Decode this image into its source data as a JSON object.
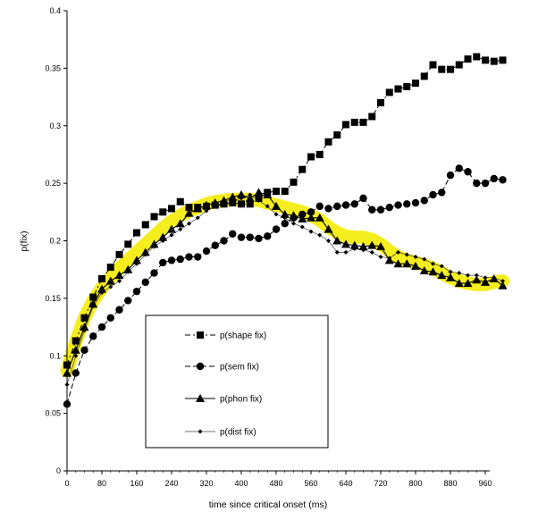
{
  "chart_data": {
    "type": "line",
    "title": "",
    "xlabel": "time since critical onset (ms)",
    "ylabel": "p(fix)",
    "xlim": [
      0,
      1000
    ],
    "ylim": [
      0,
      0.4
    ],
    "xticks": [
      0,
      80,
      160,
      240,
      320,
      400,
      480,
      560,
      640,
      720,
      800,
      880,
      960
    ],
    "xtick_labels": [
      "0",
      "80",
      "160",
      "240",
      "320",
      "400",
      "480",
      "560",
      "640",
      "720",
      "800",
      "880",
      "960"
    ],
    "yticks": [
      0,
      0.05,
      0.1,
      0.15,
      0.2,
      0.25,
      0.3,
      0.35,
      0.4
    ],
    "ytick_labels": [
      "0",
      "0.05",
      "0.1",
      "0.15",
      "0.2",
      "0.25",
      "0.3",
      "0.35",
      "0.4"
    ],
    "grid": false,
    "legend_position": "bottom-left",
    "highlight": {
      "color": "#f5ee1e",
      "x": [
        0,
        20,
        40,
        60,
        80,
        100,
        120,
        140,
        160,
        180,
        200,
        220,
        240,
        260,
        280,
        300,
        320,
        340,
        360,
        380,
        400,
        420,
        440,
        460,
        480,
        500,
        520,
        540,
        560,
        580,
        600,
        620,
        640,
        660,
        680,
        700,
        720,
        740,
        760,
        780,
        800,
        820,
        840,
        860,
        880,
        900,
        920,
        940,
        960,
        980,
        1000
      ],
      "y": [
        0.087,
        0.112,
        0.133,
        0.148,
        0.159,
        0.168,
        0.176,
        0.183,
        0.19,
        0.197,
        0.204,
        0.211,
        0.217,
        0.222,
        0.226,
        0.229,
        0.232,
        0.234,
        0.235,
        0.236,
        0.236,
        0.236,
        0.235,
        0.233,
        0.231,
        0.229,
        0.227,
        0.225,
        0.222,
        0.218,
        0.212,
        0.207,
        0.204,
        0.203,
        0.203,
        0.201,
        0.197,
        0.191,
        0.186,
        0.183,
        0.181,
        0.179,
        0.176,
        0.172,
        0.168,
        0.165,
        0.163,
        0.162,
        0.162,
        0.164,
        0.165
      ]
    },
    "series": [
      {
        "name": "p(shape fix)",
        "marker": "square",
        "dash": "dash-dot",
        "x": [
          0,
          20,
          40,
          60,
          80,
          100,
          120,
          140,
          160,
          180,
          200,
          220,
          240,
          260,
          280,
          300,
          320,
          340,
          360,
          380,
          400,
          420,
          440,
          460,
          480,
          500,
          520,
          540,
          560,
          580,
          600,
          620,
          640,
          660,
          680,
          700,
          720,
          740,
          760,
          780,
          800,
          820,
          840,
          860,
          880,
          900,
          920,
          940,
          960,
          980,
          1000
        ],
        "y": [
          0.092,
          0.113,
          0.133,
          0.151,
          0.167,
          0.177,
          0.188,
          0.197,
          0.207,
          0.214,
          0.221,
          0.225,
          0.228,
          0.234,
          0.229,
          0.229,
          0.23,
          0.231,
          0.232,
          0.233,
          0.232,
          0.232,
          0.237,
          0.242,
          0.243,
          0.243,
          0.251,
          0.262,
          0.273,
          0.275,
          0.286,
          0.292,
          0.301,
          0.303,
          0.303,
          0.308,
          0.32,
          0.329,
          0.332,
          0.334,
          0.337,
          0.343,
          0.353,
          0.349,
          0.349,
          0.353,
          0.358,
          0.36,
          0.357,
          0.356,
          0.357
        ]
      },
      {
        "name": "p(sem fix)",
        "marker": "circle",
        "dash": "dashed",
        "x": [
          0,
          20,
          40,
          60,
          80,
          100,
          120,
          140,
          160,
          180,
          200,
          220,
          240,
          260,
          280,
          300,
          320,
          340,
          360,
          380,
          400,
          420,
          440,
          460,
          480,
          500,
          520,
          540,
          560,
          580,
          600,
          620,
          640,
          660,
          680,
          700,
          720,
          740,
          760,
          780,
          800,
          820,
          840,
          860,
          880,
          900,
          920,
          940,
          960,
          980,
          1000
        ],
        "y": [
          0.058,
          0.085,
          0.105,
          0.117,
          0.125,
          0.133,
          0.14,
          0.148,
          0.156,
          0.164,
          0.172,
          0.181,
          0.183,
          0.184,
          0.186,
          0.186,
          0.191,
          0.196,
          0.2,
          0.206,
          0.203,
          0.203,
          0.202,
          0.204,
          0.21,
          0.215,
          0.22,
          0.223,
          0.225,
          0.23,
          0.228,
          0.23,
          0.231,
          0.232,
          0.237,
          0.227,
          0.227,
          0.229,
          0.231,
          0.232,
          0.233,
          0.235,
          0.24,
          0.242,
          0.257,
          0.263,
          0.26,
          0.25,
          0.25,
          0.254,
          0.253
        ]
      },
      {
        "name": "p(phon fix)",
        "marker": "triangle",
        "dash": "solid",
        "x": [
          0,
          20,
          40,
          60,
          80,
          100,
          120,
          140,
          160,
          180,
          200,
          220,
          240,
          260,
          280,
          300,
          320,
          340,
          360,
          380,
          400,
          420,
          440,
          460,
          480,
          500,
          520,
          540,
          560,
          580,
          600,
          620,
          640,
          660,
          680,
          700,
          720,
          740,
          760,
          780,
          800,
          820,
          840,
          860,
          880,
          900,
          920,
          940,
          960,
          980,
          1000
        ],
        "y": [
          0.085,
          0.105,
          0.125,
          0.145,
          0.158,
          0.165,
          0.17,
          0.175,
          0.183,
          0.19,
          0.197,
          0.203,
          0.21,
          0.215,
          0.224,
          0.228,
          0.231,
          0.233,
          0.235,
          0.238,
          0.24,
          0.237,
          0.242,
          0.24,
          0.23,
          0.223,
          0.222,
          0.219,
          0.22,
          0.22,
          0.21,
          0.2,
          0.197,
          0.196,
          0.195,
          0.196,
          0.195,
          0.183,
          0.18,
          0.18,
          0.178,
          0.174,
          0.173,
          0.17,
          0.168,
          0.163,
          0.163,
          0.166,
          0.164,
          0.167,
          0.161
        ]
      },
      {
        "name": "p(dist fix)",
        "marker": "diamond",
        "dash": "solid",
        "x": [
          0,
          20,
          40,
          60,
          80,
          100,
          120,
          140,
          160,
          180,
          200,
          220,
          240,
          260,
          280,
          300,
          320,
          340,
          360,
          380,
          400,
          420,
          440,
          460,
          480,
          500,
          520,
          540,
          560,
          580,
          600,
          620,
          640,
          660,
          680,
          700,
          720,
          740,
          760,
          780,
          800,
          820,
          840,
          860,
          880,
          900,
          920,
          940,
          960,
          980,
          1000
        ],
        "y": [
          0.075,
          0.1,
          0.122,
          0.143,
          0.155,
          0.16,
          0.165,
          0.173,
          0.18,
          0.188,
          0.195,
          0.2,
          0.205,
          0.21,
          0.215,
          0.22,
          0.226,
          0.23,
          0.232,
          0.234,
          0.237,
          0.24,
          0.235,
          0.23,
          0.223,
          0.22,
          0.215,
          0.212,
          0.208,
          0.205,
          0.2,
          0.19,
          0.19,
          0.193,
          0.192,
          0.19,
          0.186,
          0.185,
          0.19,
          0.188,
          0.186,
          0.184,
          0.18,
          0.178,
          0.173,
          0.172,
          0.17,
          0.17,
          0.168,
          0.168,
          0.165
        ]
      }
    ]
  }
}
